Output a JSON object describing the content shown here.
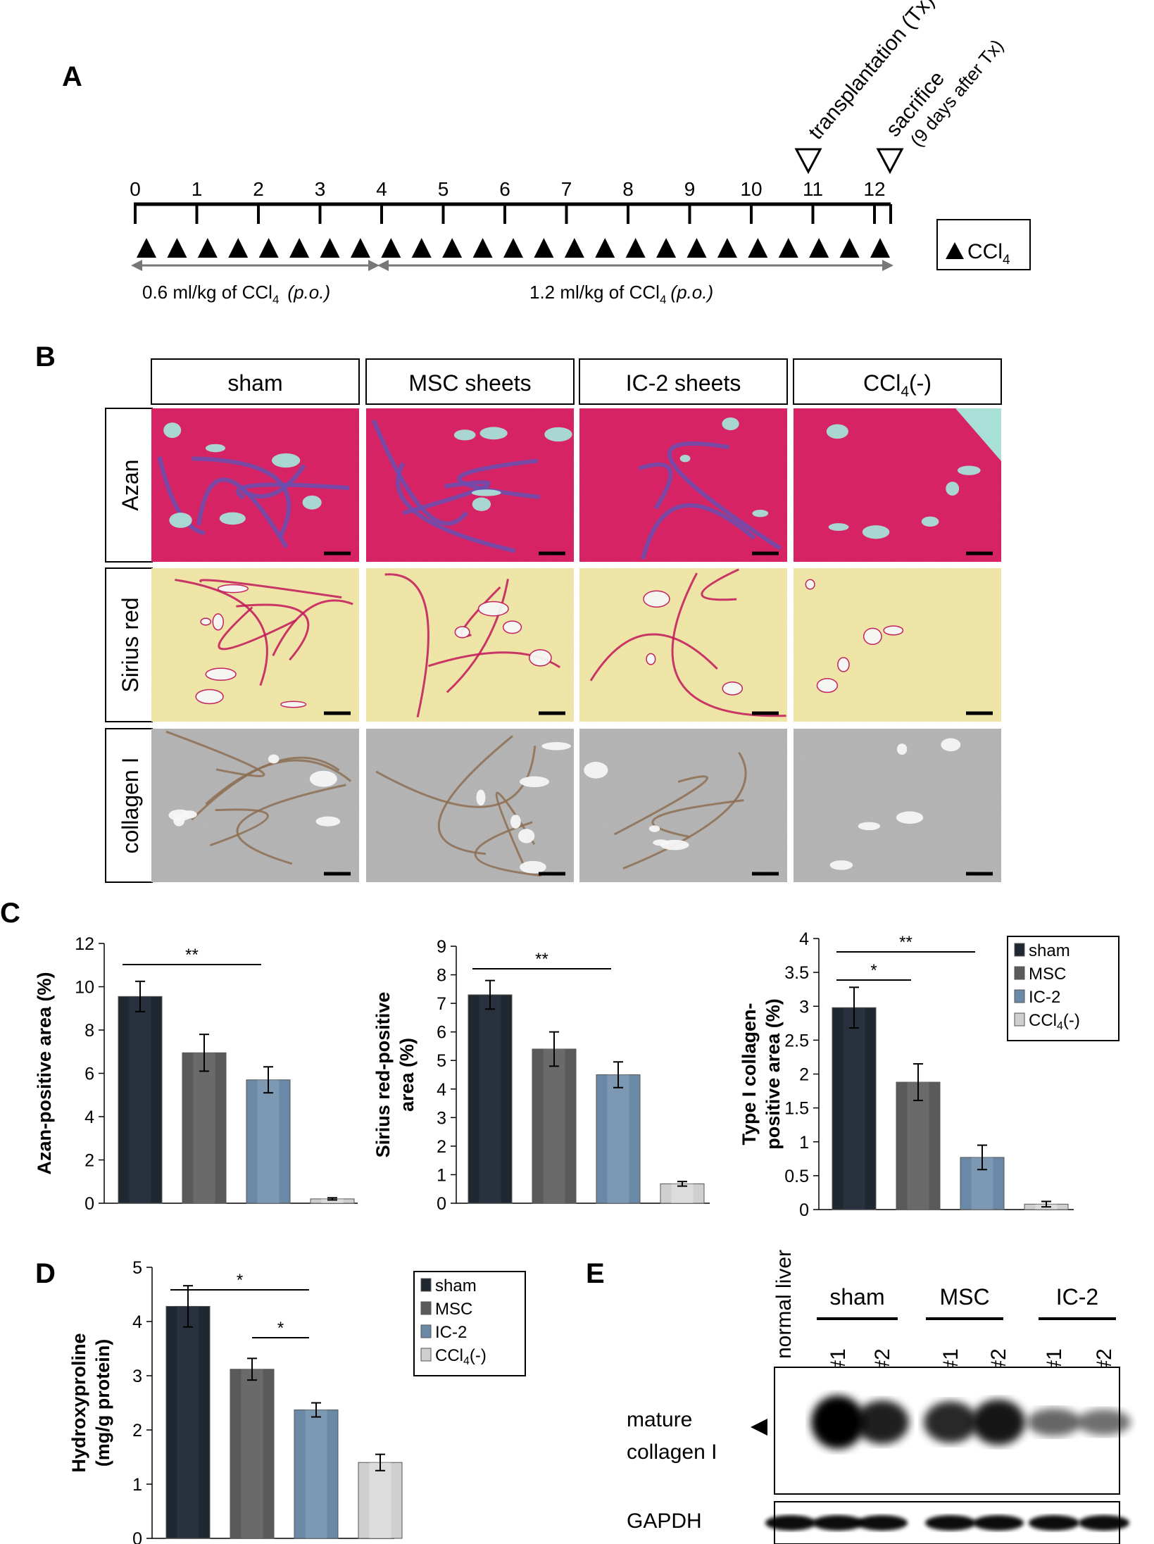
{
  "panel_a": {
    "label": "A",
    "ticks": [
      "0",
      "1",
      "2",
      "3",
      "4",
      "5",
      "6",
      "7",
      "8",
      "9",
      "10",
      "11",
      "12"
    ],
    "transplant_label": "transplantation (Tx)",
    "sacrifice_label": "sacrifice",
    "sacrifice_sub": "(9 days after Tx)",
    "dose1": "0.6 ml/kg of CCl",
    "dose1_sub": "4",
    "dose1_route": "(p.o.)",
    "dose2": "1.2 ml/kg of CCl",
    "dose2_sub": "4",
    "dose2_route": "(p.o.)",
    "legend": "CCl",
    "legend_sub": "4",
    "num_triangles": 25
  },
  "panel_b": {
    "label": "B",
    "columns": [
      "sham",
      "MSC sheets",
      "IC-2 sheets",
      "CCl"
    ],
    "ccl_col_sub": "4",
    "ccl_col_suffix": "(-)",
    "rows": [
      "Azan",
      "Sirius red",
      "collagen I"
    ],
    "colors": {
      "azan": "#d81b60",
      "azan_fibrosis": "#6a4fb0",
      "sirius": "#f1e7a6",
      "sirius_fibrosis": "#c2185b",
      "collagen": "#b3b3b3",
      "collagen_fibrosis": "#8d6e52"
    }
  },
  "panel_c": {
    "label": "C",
    "legend": [
      "sham",
      "MSC",
      "IC-2",
      "CCl"
    ],
    "legend_last_sub": "4",
    "legend_last_suffix": "(-)"
  },
  "panel_d": {
    "label": "D",
    "legend": [
      "sham",
      "MSC",
      "IC-2",
      "CCl"
    ],
    "legend_last_sub": "4",
    "legend_last_suffix": "(-)"
  },
  "panel_e": {
    "label": "E",
    "normal_liver": "normal liver",
    "groups": [
      "sham",
      "MSC",
      "IC-2"
    ],
    "lanes": [
      "#1",
      "#2",
      "#1",
      "#2",
      "#1",
      "#2"
    ],
    "band_label_1": "mature",
    "band_label_2": "collagen I",
    "gapdh": "GAPDH"
  },
  "chart_data": [
    {
      "type": "bar",
      "categories": [
        "sham",
        "MSC",
        "IC-2",
        "CCl4(-)"
      ],
      "values": [
        9.55,
        6.95,
        5.7,
        0.2
      ],
      "errors": [
        0.7,
        0.85,
        0.6,
        0.05
      ],
      "ylabel": "Azan-positive area (%)",
      "ylim": [
        0,
        12
      ],
      "yticks": [
        "0",
        "2",
        "4",
        "6",
        "8",
        "10",
        "12"
      ],
      "significance": [
        {
          "from": 0,
          "to": 2,
          "label": "**"
        }
      ],
      "colors": [
        "#2a3340",
        "#6f6f6f",
        "#7e9bb6",
        "#e4e4e4"
      ]
    },
    {
      "type": "bar",
      "categories": [
        "sham",
        "MSC",
        "IC-2",
        "CCl4(-)"
      ],
      "values": [
        7.3,
        5.4,
        4.5,
        0.68
      ],
      "errors": [
        0.5,
        0.6,
        0.45,
        0.08
      ],
      "ylabel": "Sirius red-positive area (%)",
      "ylim": [
        0,
        9
      ],
      "yticks": [
        "0",
        "1",
        "2",
        "3",
        "4",
        "5",
        "6",
        "7",
        "8",
        "9"
      ],
      "significance": [
        {
          "from": 0,
          "to": 2,
          "label": "**"
        }
      ],
      "colors": [
        "#2a3340",
        "#6f6f6f",
        "#7e9bb6",
        "#e4e4e4"
      ]
    },
    {
      "type": "bar",
      "categories": [
        "sham",
        "MSC",
        "IC-2",
        "CCl4(-)"
      ],
      "values": [
        2.98,
        1.88,
        0.77,
        0.08
      ],
      "errors": [
        0.3,
        0.27,
        0.18,
        0.04
      ],
      "ylabel": "Type I collagen-positive area (%)",
      "ylim": [
        0,
        4
      ],
      "yticks": [
        "0",
        "0.5",
        "1",
        "1.5",
        "2",
        "2.5",
        "3",
        "3.5",
        "4"
      ],
      "significance": [
        {
          "from": 0,
          "to": 1,
          "label": "*"
        },
        {
          "from": 0,
          "to": 2,
          "label": "**"
        }
      ],
      "colors": [
        "#2a3340",
        "#6f6f6f",
        "#7e9bb6",
        "#e4e4e4"
      ]
    },
    {
      "type": "bar",
      "categories": [
        "sham",
        "MSC",
        "IC-2",
        "CCl4(-)"
      ],
      "values": [
        4.28,
        3.12,
        2.37,
        1.4
      ],
      "errors": [
        0.38,
        0.2,
        0.13,
        0.15
      ],
      "ylabel": "Hydroxyproline (mg/g protein)",
      "ylim": [
        0,
        5
      ],
      "yticks": [
        "0",
        "1",
        "2",
        "3",
        "4",
        "5"
      ],
      "significance": [
        {
          "from": 0,
          "to": 2,
          "label": "*"
        },
        {
          "from": 1,
          "to": 2,
          "label": "*"
        }
      ],
      "colors": [
        "#2a3340",
        "#6f6f6f",
        "#7e9bb6",
        "#e4e4e4"
      ]
    }
  ]
}
